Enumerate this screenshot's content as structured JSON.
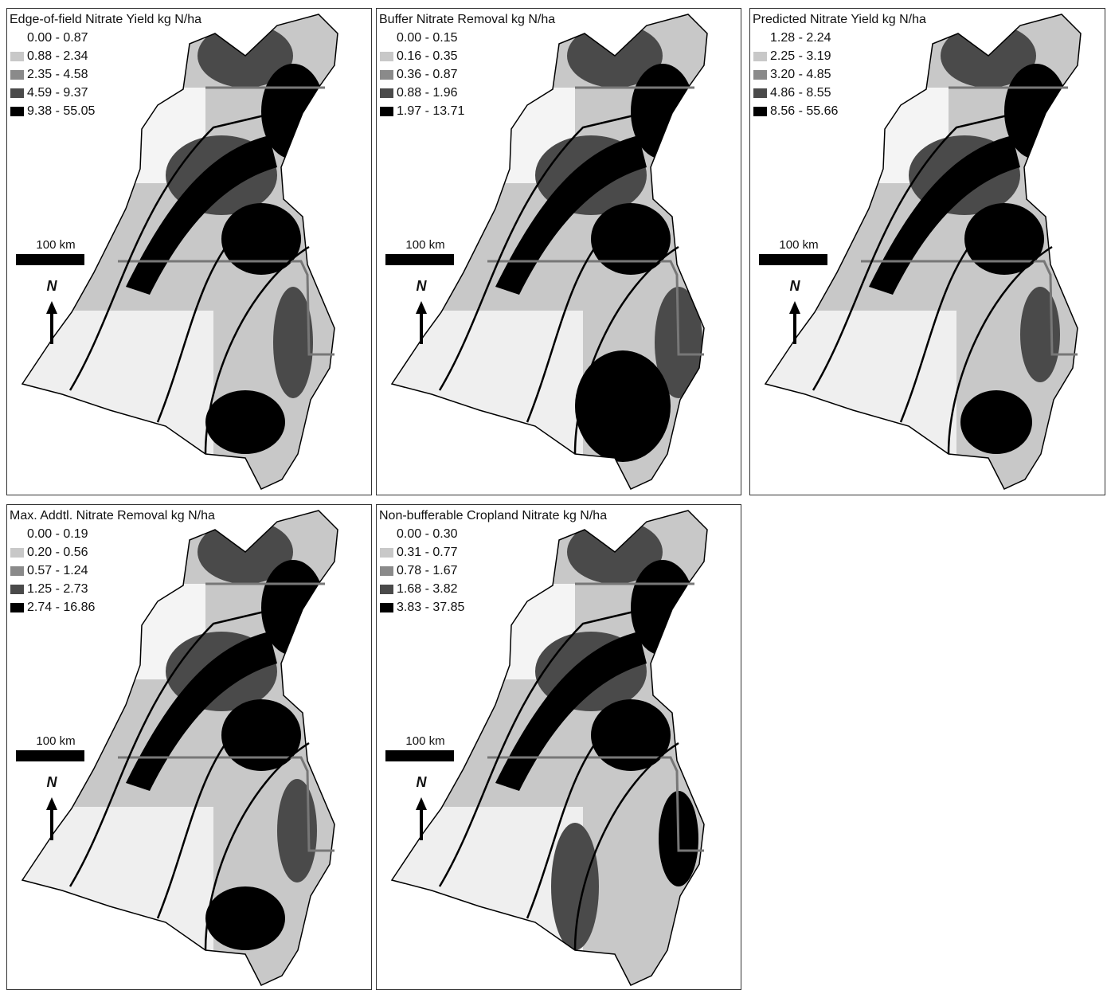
{
  "legend_colors": [
    "#ffffff",
    "#c8c8c8",
    "#8a8a8a",
    "#4a4a4a",
    "#000000"
  ],
  "panels": [
    {
      "title": "Edge-of-field Nitrate Yield kg N/ha",
      "legend": [
        "0.00 - 0.87",
        "0.88 - 2.34",
        "2.35 - 4.58",
        "4.59 - 9.37",
        "9.38 - 55.05"
      ],
      "scale_label": "100 km",
      "north_label": "N"
    },
    {
      "title": "Buffer Nitrate Removal kg N/ha",
      "legend": [
        "0.00 - 0.15",
        "0.16 - 0.35",
        "0.36 - 0.87",
        "0.88 - 1.96",
        "1.97 - 13.71"
      ],
      "scale_label": "100 km",
      "north_label": "N"
    },
    {
      "title": "Predicted Nitrate Yield kg N/ha",
      "legend": [
        "1.28 - 2.24",
        "2.25 - 3.19",
        "3.20 - 4.85",
        "4.86 - 8.55",
        "8.56 - 55.66"
      ],
      "scale_label": "100 km",
      "north_label": "N"
    },
    {
      "title": "Max. Addtl. Nitrate Removal kg N/ha",
      "legend": [
        "0.00 - 0.19",
        "0.20 - 0.56",
        "0.57 - 1.24",
        "1.25 - 2.73",
        "2.74 - 16.86"
      ],
      "scale_label": "100 km",
      "north_label": "N"
    },
    {
      "title": "Non-bufferable Cropland Nitrate kg N/ha",
      "legend": [
        "0.00 - 0.30",
        "0.31 - 0.77",
        "0.78 - 1.67",
        "1.68 - 3.82",
        "3.83 - 37.85"
      ],
      "scale_label": "100 km",
      "north_label": "N"
    }
  ]
}
